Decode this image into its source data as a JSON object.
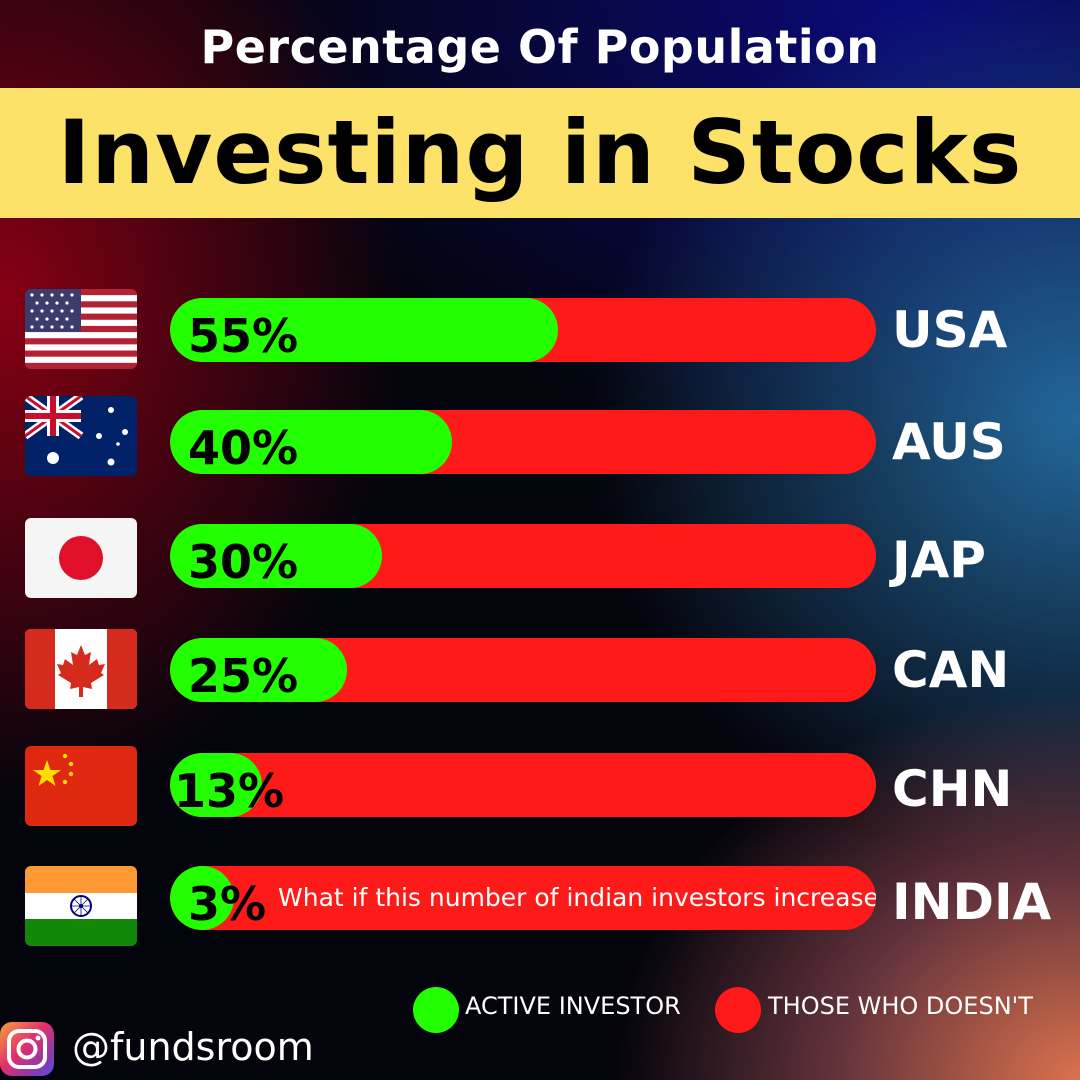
{
  "header": {
    "subtitle": "Percentage Of Population",
    "title": "Investing in Stocks"
  },
  "colors": {
    "banner": "#fde269",
    "active": "#22ff00",
    "inactive": "#ff1a1a"
  },
  "rows": [
    {
      "country": "USA",
      "value": 55,
      "label": "55%",
      "flag": "usa-flag-icon"
    },
    {
      "country": "AUS",
      "value": 40,
      "label": "40%",
      "flag": "australia-flag-icon"
    },
    {
      "country": "JAP",
      "value": 30,
      "label": "30%",
      "flag": "japan-flag-icon"
    },
    {
      "country": "CAN",
      "value": 25,
      "label": "25%",
      "flag": "canada-flag-icon"
    },
    {
      "country": "CHN",
      "value": 13,
      "label": "13%",
      "flag": "china-flag-icon"
    },
    {
      "country": "INDIA",
      "value": 3,
      "label": "3%",
      "flag": "india-flag-icon"
    }
  ],
  "india_note": "What if this number of indian investors increase",
  "legend": {
    "active": "ACTIVE INVESTOR",
    "inactive": "THOSE WHO DOESN'T"
  },
  "footer": {
    "handle": "@fundsroom",
    "icon": "instagram-icon"
  },
  "chart_data": {
    "type": "bar",
    "title": "Investing in Stocks",
    "subtitle": "Percentage Of Population",
    "categories": [
      "USA",
      "AUS",
      "JAP",
      "CAN",
      "CHN",
      "INDIA"
    ],
    "series": [
      {
        "name": "ACTIVE INVESTOR",
        "values": [
          55,
          40,
          30,
          25,
          13,
          3
        ]
      },
      {
        "name": "THOSE WHO DOESN'T",
        "values": [
          45,
          60,
          70,
          75,
          87,
          97
        ]
      }
    ],
    "ylim": [
      0,
      100
    ],
    "orientation": "horizontal",
    "stacked": true,
    "legend": "bottom-right"
  }
}
